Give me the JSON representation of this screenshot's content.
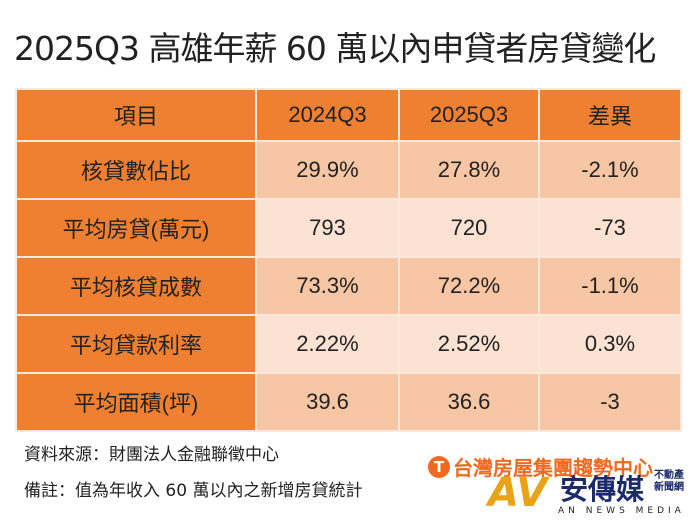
{
  "title": "2025Q3 高雄年薪 60 萬以內申貸者房貸變化",
  "table": {
    "headers": [
      "項目",
      "2024Q3",
      "2025Q3",
      "差異"
    ],
    "rows": [
      [
        "核貸數佔比",
        "29.9%",
        "27.8%",
        "-2.1%"
      ],
      [
        "平均房貸(萬元)",
        "793",
        "720",
        "-73"
      ],
      [
        "平均核貸成數",
        "73.3%",
        "72.2%",
        "-1.1%"
      ],
      [
        "平均貸款利率",
        "2.22%",
        "2.52%",
        "0.3%"
      ],
      [
        "平均面積(坪)",
        "39.6",
        "36.6",
        "-3"
      ]
    ]
  },
  "notes": {
    "source": "資料來源：財團法人金融聯徵中心",
    "remark": "備註：值為年收入 60 萬以內之新增房貸統計"
  },
  "logos": {
    "taiwan_realty": "台灣房屋集團趨勢中心",
    "an_news_zh": "安傳媒",
    "an_news_sub": "不動產新聞網",
    "an_news_en": "AN NEWS MEDIA"
  },
  "colors": {
    "header": "#ef8032",
    "row_dark": "#f7c6a4",
    "row_light": "#fbe2d2"
  }
}
